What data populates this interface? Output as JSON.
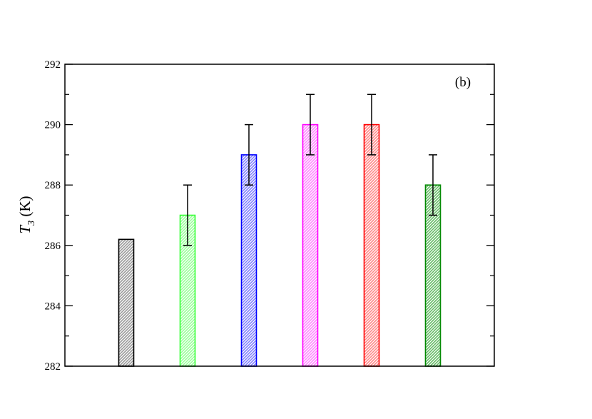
{
  "chart_data": {
    "type": "bar",
    "title": "",
    "panel_label": "(b)",
    "xlabel": "",
    "ylabel": {
      "symbol": "T",
      "subscript": "3",
      "unit": " (K)"
    },
    "ylim": [
      282,
      292
    ],
    "yticks": [
      282,
      284,
      286,
      288,
      290,
      292
    ],
    "yticks_minor": [
      283,
      285,
      287,
      289,
      291
    ],
    "grid": false,
    "legend": "none",
    "bars": [
      {
        "value": 286.2,
        "error": null,
        "color": "#000000",
        "fill": "#9a9a9a"
      },
      {
        "value": 287,
        "error": 1,
        "color": "#33ff33",
        "fill": "#99ff99"
      },
      {
        "value": 289,
        "error": 1,
        "color": "#0000ff",
        "fill": "#8080ff"
      },
      {
        "value": 290,
        "error": 1,
        "color": "#ff00ff",
        "fill": "#ff88ff"
      },
      {
        "value": 290,
        "error": 1,
        "color": "#ff0000",
        "fill": "#ff8888"
      },
      {
        "value": 288,
        "error": 1,
        "color": "#008800",
        "fill": "#66bb66"
      }
    ]
  }
}
